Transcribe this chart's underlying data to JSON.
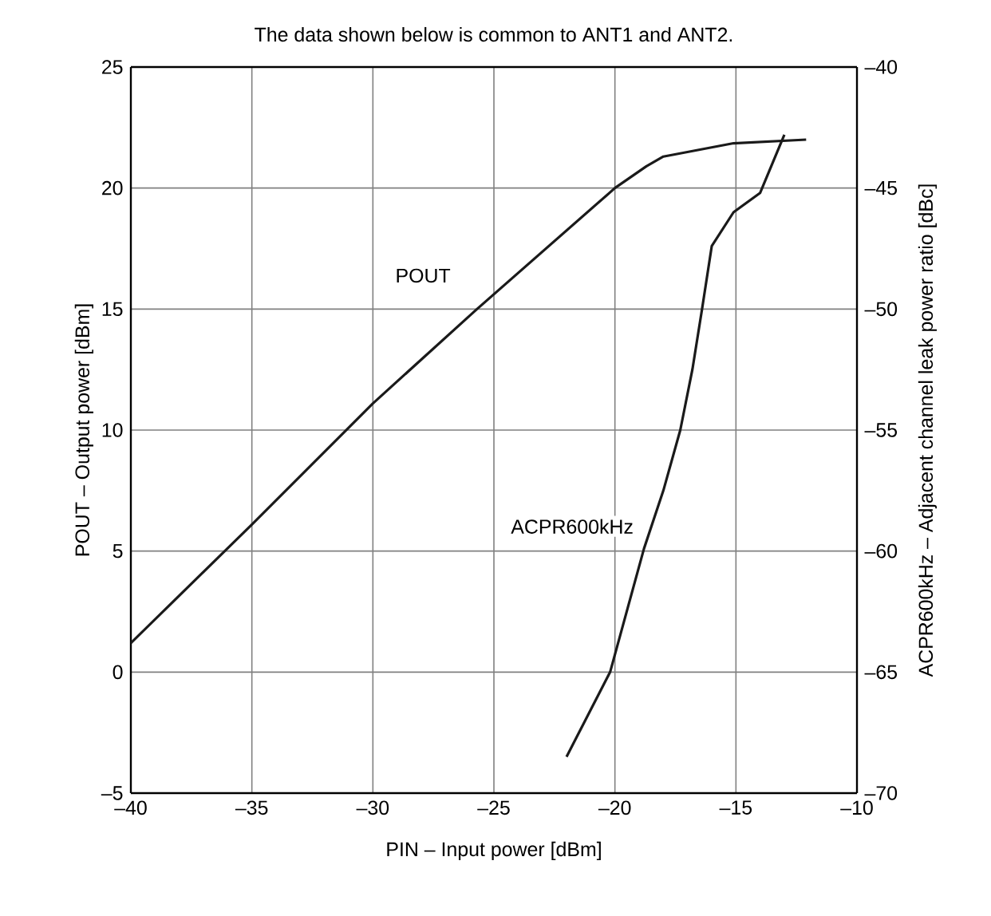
{
  "chart_data": {
    "type": "line",
    "title": "The data shown below is common to ANT1 and ANT2.",
    "xlabel": "PIN – Input power [dBm]",
    "ylabel": "POUT – Output power [dBm]",
    "y2label": "ACPR600kHz – Adjacent channel leak power ratio [dBc]",
    "xlim": [
      -40,
      -10
    ],
    "ylim": [
      -5,
      25
    ],
    "y2lim": [
      -70,
      -40
    ],
    "xticks": [
      {
        "value": -40,
        "label": "–40"
      },
      {
        "value": -35,
        "label": "–35"
      },
      {
        "value": -30,
        "label": "–30"
      },
      {
        "value": -25,
        "label": "–25"
      },
      {
        "value": -20,
        "label": "–20"
      },
      {
        "value": -15,
        "label": "–15"
      },
      {
        "value": -10,
        "label": "–10"
      }
    ],
    "yticks": [
      {
        "value": -5,
        "label": "–5"
      },
      0,
      5,
      10,
      15,
      20,
      25
    ],
    "y2ticks": [
      {
        "value": -70,
        "label": "–70"
      },
      {
        "value": -65,
        "label": "–65"
      },
      {
        "value": -60,
        "label": "–60"
      },
      {
        "value": -55,
        "label": "–55"
      },
      {
        "value": -50,
        "label": "–50"
      },
      {
        "value": -45,
        "label": "–45"
      },
      {
        "value": -40,
        "label": "–40"
      }
    ],
    "grid": true,
    "marker": "none",
    "line_style": "solid",
    "series": [
      {
        "name": "POUT",
        "color": "#1a1a1a",
        "x": [
          -40,
          -35,
          -30,
          -25.7,
          -20,
          -18.7,
          -18,
          -15.1,
          -12.1
        ],
        "values": [
          1.2,
          6.1,
          11.1,
          15,
          20,
          20.9,
          21.3,
          21.85,
          22.0
        ]
      },
      {
        "name": "ACPR600kHz",
        "color": "#1a1a1a",
        "axis": "y2",
        "x": [
          -22.0,
          -20.2,
          -18.8,
          -18.0,
          -17.3,
          -16.8,
          -16.4,
          -16.0,
          -15.1,
          -14.0,
          -13.0
        ],
        "values": [
          -68.5,
          -65.0,
          -59.9,
          -57.5,
          -55.0,
          -52.5,
          -50.0,
          -47.4,
          -46.0,
          -45.2,
          -42.8
        ]
      }
    ]
  }
}
